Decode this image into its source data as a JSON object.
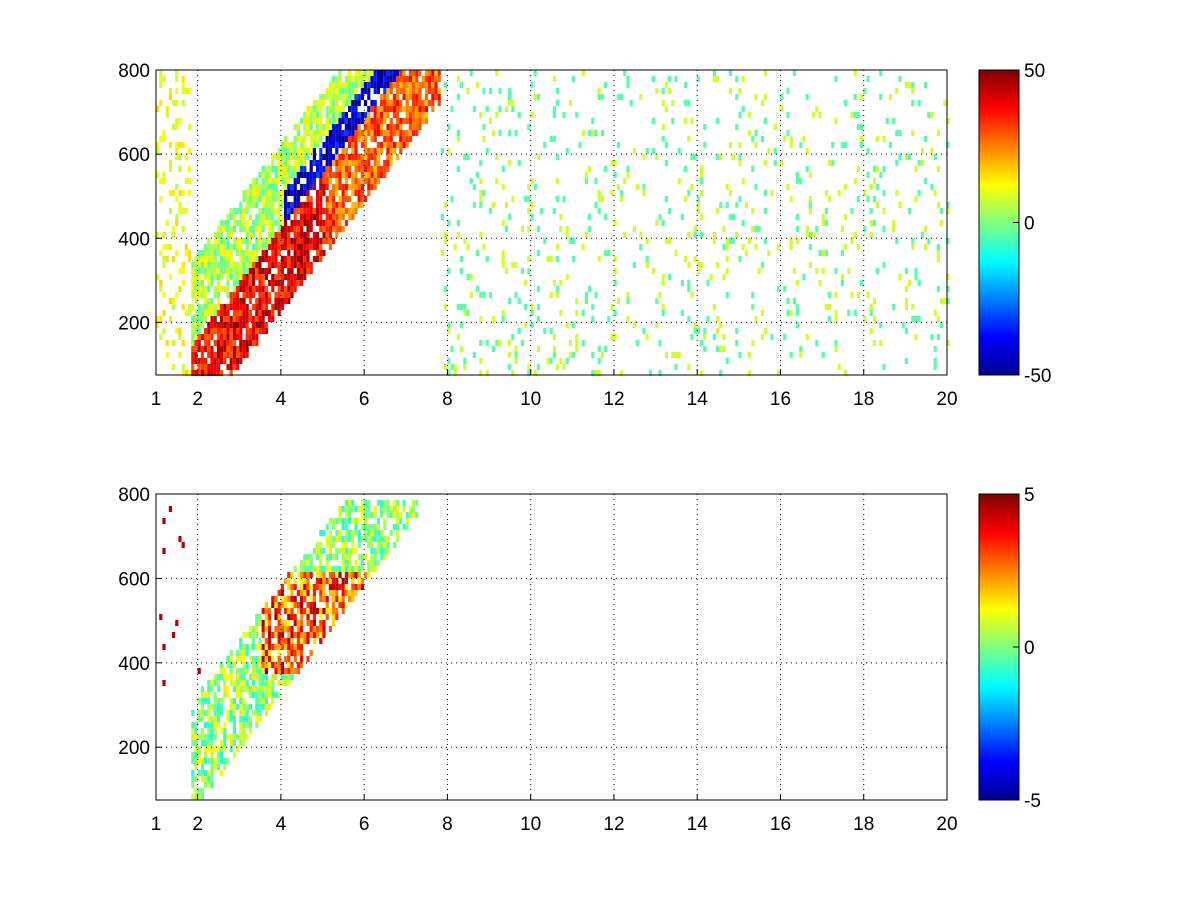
{
  "chart_data": [
    {
      "type": "heatmap",
      "title": "",
      "xlabel": "",
      "ylabel": "",
      "xlim": [
        1,
        20
      ],
      "ylim": [
        75,
        800
      ],
      "x_ticks": [
        1,
        2,
        4,
        6,
        8,
        10,
        12,
        14,
        16,
        18,
        20
      ],
      "x_tick_labels": [
        "1",
        "2",
        "4",
        "6",
        "8",
        "10",
        "12",
        "14",
        "16",
        "18",
        "20"
      ],
      "y_ticks": [
        200,
        400,
        600,
        800
      ],
      "y_tick_labels": [
        "200",
        "400",
        "600",
        "800"
      ],
      "grid": true,
      "colormap": "jet",
      "clim": [
        -50,
        50
      ],
      "colorbar_ticks": [
        -50,
        0,
        50
      ],
      "colorbar_tick_labels": [
        "-50",
        "0",
        "50"
      ],
      "features": [
        {
          "region": "diagonal band",
          "x_range": [
            2,
            7.5
          ],
          "y_range": [
            90,
            800
          ],
          "level": 30,
          "note": "positive values along lower edge"
        },
        {
          "region": "diagonal band upper edge",
          "x_range": [
            4,
            7
          ],
          "y_range": [
            250,
            700
          ],
          "level": -35,
          "note": "negative values"
        },
        {
          "region": "scattered columns",
          "x_range": [
            8,
            20
          ],
          "y_range": [
            75,
            800
          ],
          "level": 0
        }
      ]
    },
    {
      "type": "heatmap",
      "title": "",
      "xlabel": "",
      "ylabel": "",
      "xlim": [
        1,
        20
      ],
      "ylim": [
        75,
        800
      ],
      "x_ticks": [
        1,
        2,
        4,
        6,
        8,
        10,
        12,
        14,
        16,
        18,
        20
      ],
      "x_tick_labels": [
        "1",
        "2",
        "4",
        "6",
        "8",
        "10",
        "12",
        "14",
        "16",
        "18",
        "20"
      ],
      "y_ticks": [
        200,
        400,
        600,
        800
      ],
      "y_tick_labels": [
        "200",
        "400",
        "600",
        "800"
      ],
      "grid": true,
      "colormap": "jet",
      "clim": [
        -5,
        5
      ],
      "colorbar_ticks": [
        -5,
        0,
        5
      ],
      "colorbar_tick_labels": [
        "-5",
        "0",
        "5"
      ],
      "features": [
        {
          "region": "diagonal band",
          "x_range": [
            1.8,
            7.3
          ],
          "y_range": [
            90,
            780
          ],
          "level": 0.5
        },
        {
          "region": "upper arc",
          "x_range": [
            3.5,
            6.5
          ],
          "y_range": [
            380,
            600
          ],
          "level": 3
        }
      ]
    }
  ]
}
